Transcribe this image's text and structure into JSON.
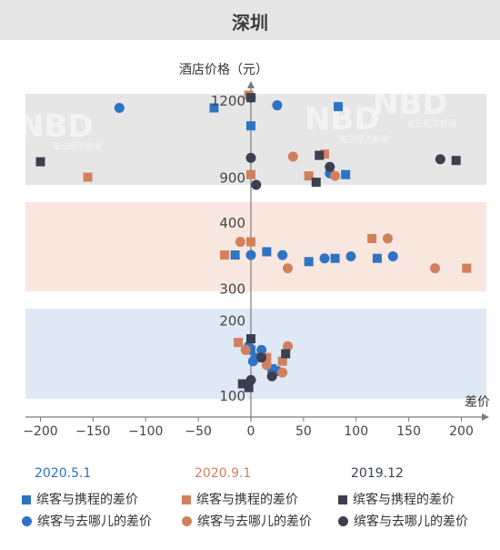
{
  "title": "深圳",
  "chart_data": {
    "type": "scatter",
    "ylabel": "酒店价格（元）",
    "xlabel": "差价",
    "x_ticks": [
      -200,
      -150,
      -100,
      -50,
      0,
      50,
      100,
      150,
      200
    ],
    "xlim": [
      -200,
      200
    ],
    "bands": [
      {
        "name": "high",
        "tick_labels": [
          {
            "value": 1200,
            "label": "1200"
          },
          {
            "value": 900,
            "label": "900"
          }
        ],
        "ylim": [
          870,
          1225
        ],
        "color": "#e6e6e6"
      },
      {
        "name": "mid",
        "tick_labels": [
          {
            "value": 400,
            "label": "400"
          },
          {
            "value": 300,
            "label": "300"
          }
        ],
        "ylim": [
          295,
          430
        ],
        "color": "#f8e7de"
      },
      {
        "name": "low",
        "tick_labels": [
          {
            "value": 200,
            "label": "200"
          },
          {
            "value": 100,
            "label": "100"
          }
        ],
        "ylim": [
          95,
          215
        ],
        "color": "#dfe8f5"
      }
    ],
    "legend_groups": [
      {
        "heading": "2020.5.1",
        "color": "#2e73c4",
        "items": [
          {
            "marker": "square",
            "label": "缤客与携程的差价"
          },
          {
            "marker": "circle",
            "label": "缤客与去哪儿的差价"
          }
        ]
      },
      {
        "heading": "2020.9.1",
        "color": "#d1805d",
        "items": [
          {
            "marker": "square",
            "label": "缤客与携程的差价"
          },
          {
            "marker": "circle",
            "label": "缤客与去哪儿的差价"
          }
        ]
      },
      {
        "heading": "2019.12",
        "color": "#3c3f4f",
        "items": [
          {
            "marker": "square",
            "label": "缤客与携程的差价"
          },
          {
            "marker": "circle",
            "label": "缤客与去哪儿的差价"
          }
        ]
      }
    ],
    "series": [
      {
        "period": "2020.5.1",
        "comparison": "携程",
        "marker": "square",
        "color": "#2e73c4",
        "points": [
          [
            -35,
            1170
          ],
          [
            0,
            1100
          ],
          [
            83,
            1175
          ],
          [
            90,
            910
          ],
          [
            -15,
            350
          ],
          [
            15,
            355
          ],
          [
            55,
            340
          ],
          [
            80,
            345
          ],
          [
            120,
            345
          ],
          [
            0,
            160
          ],
          [
            5,
            150
          ],
          [
            20,
            135
          ]
        ]
      },
      {
        "period": "2020.5.1",
        "comparison": "去哪儿",
        "marker": "circle",
        "color": "#2e73c4",
        "points": [
          [
            -125,
            1170
          ],
          [
            0,
            1210
          ],
          [
            25,
            1180
          ],
          [
            75,
            915
          ],
          [
            0,
            350
          ],
          [
            30,
            350
          ],
          [
            70,
            345
          ],
          [
            95,
            348
          ],
          [
            135,
            348
          ],
          [
            2,
            145
          ],
          [
            10,
            160
          ],
          [
            25,
            132
          ],
          [
            -2,
            165
          ]
        ]
      },
      {
        "period": "2020.9.1",
        "comparison": "携程",
        "marker": "square",
        "color": "#d1805d",
        "points": [
          [
            -155,
            900
          ],
          [
            -2,
            1220
          ],
          [
            0,
            910
          ],
          [
            70,
            990
          ],
          [
            55,
            905
          ],
          [
            -25,
            350
          ],
          [
            0,
            370
          ],
          [
            115,
            375
          ],
          [
            205,
            330
          ],
          [
            -12,
            170
          ],
          [
            15,
            150
          ],
          [
            30,
            145
          ]
        ]
      },
      {
        "period": "2020.9.1",
        "comparison": "去哪儿",
        "marker": "circle",
        "color": "#d1805d",
        "points": [
          [
            -10,
            370
          ],
          [
            35,
            330
          ],
          [
            130,
            375
          ],
          [
            175,
            330
          ],
          [
            40,
            980
          ],
          [
            80,
            905
          ],
          [
            35,
            165
          ],
          [
            30,
            130
          ],
          [
            15,
            140
          ],
          [
            -5,
            160
          ]
        ]
      },
      {
        "period": "2019.12",
        "comparison": "携程",
        "marker": "square",
        "color": "#3c3f4f",
        "points": [
          [
            -200,
            960
          ],
          [
            0,
            1210
          ],
          [
            65,
            985
          ],
          [
            62,
            880
          ],
          [
            195,
            965
          ],
          [
            0,
            175
          ],
          [
            33,
            155
          ],
          [
            -8,
            115
          ],
          [
            -2,
            110
          ]
        ]
      },
      {
        "period": "2019.12",
        "comparison": "去哪儿",
        "marker": "circle",
        "color": "#3c3f4f",
        "points": [
          [
            0,
            975
          ],
          [
            5,
            870
          ],
          [
            75,
            940
          ],
          [
            180,
            970
          ],
          [
            10,
            150
          ],
          [
            0,
            120
          ],
          [
            20,
            125
          ]
        ]
      }
    ]
  },
  "watermark": {
    "logo": "NBD",
    "sub": "每日经济新闻"
  }
}
